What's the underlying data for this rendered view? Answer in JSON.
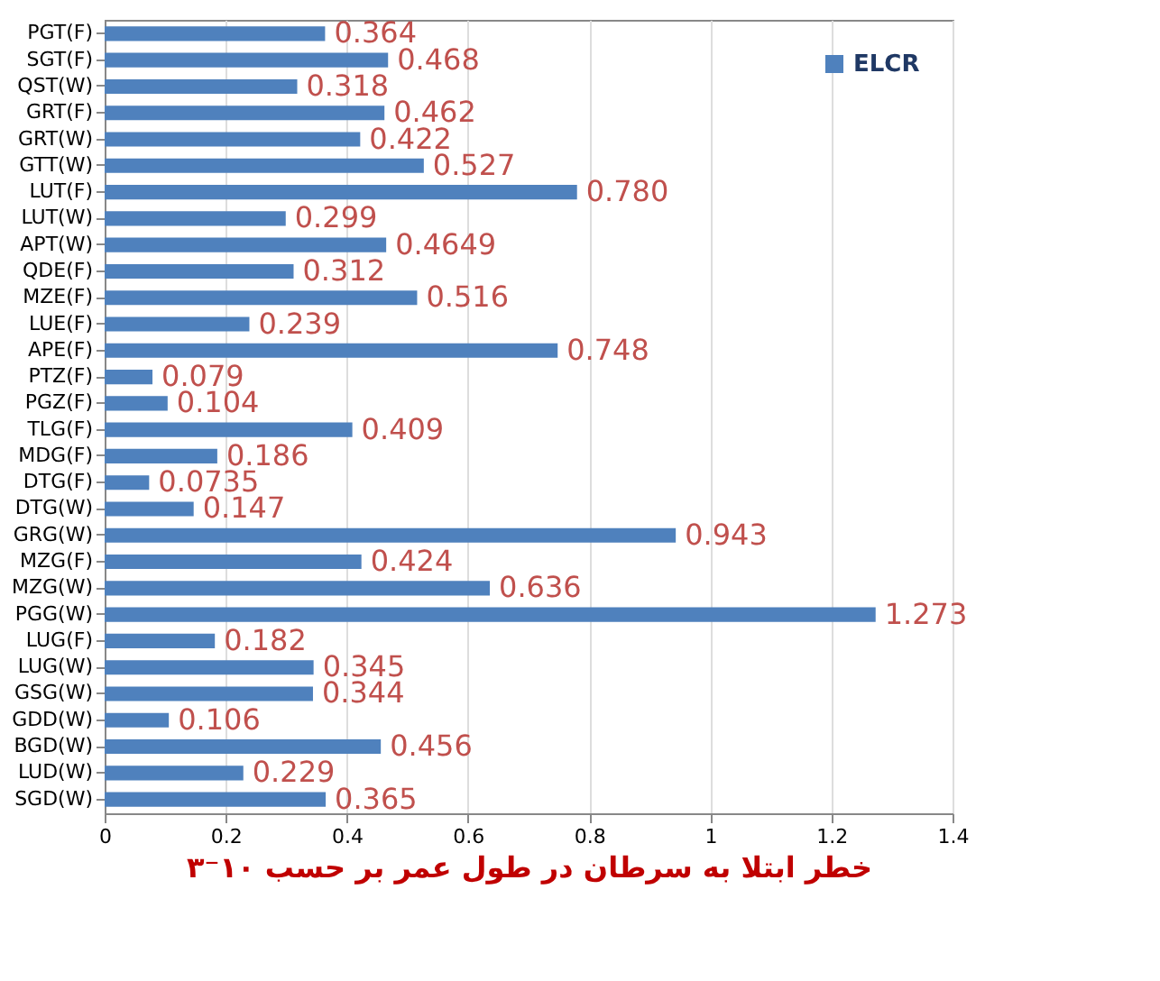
{
  "chart_data": {
    "type": "bar",
    "orientation": "horizontal",
    "xlabel": "خطر ابتلا به سرطان در طول عمر بر حسب ۱۰⁻۳",
    "categories": [
      "PGT(F)",
      "SGT(F)",
      "QST(W)",
      "GRT(F)",
      "GRT(W)",
      "GTT(W)",
      "LUT(F)",
      "LUT(W)",
      "APT(W)",
      "QDE(F)",
      "MZE(F)",
      "LUE(F)",
      "APE(F)",
      "PTZ(F)",
      "PGZ(F)",
      "TLG(F)",
      "MDG(F)",
      "DTG(F)",
      "DTG(W)",
      "GRG(W)",
      "MZG(F)",
      "MZG(W)",
      "PGG(W)",
      "LUG(F)",
      "LUG(W)",
      "GSG(W)",
      "GDD(W)",
      "BGD(W)",
      "LUD(W)",
      "SGD(W)"
    ],
    "series": [
      {
        "name": "ELCR",
        "color": "#4f81bd",
        "values": [
          0.364,
          0.468,
          0.318,
          0.462,
          0.422,
          0.527,
          0.78,
          0.299,
          0.4649,
          0.312,
          0.516,
          0.239,
          0.748,
          0.079,
          0.104,
          0.409,
          0.186,
          0.0735,
          0.147,
          0.943,
          0.424,
          0.636,
          1.273,
          0.182,
          0.345,
          0.344,
          0.106,
          0.456,
          0.229,
          0.365
        ],
        "value_labels": [
          "0.364",
          "0.468",
          "0.318",
          "0.462",
          "0.422",
          "0.527",
          "0.780",
          "0.299",
          "0.4649",
          "0.312",
          "0.516",
          "0.239",
          "0.748",
          "0.079",
          "0.104",
          "0.409",
          "0.186",
          "0.0735",
          "0.147",
          "0.943",
          "0.424",
          "0.636",
          "1.273",
          "0.182",
          "0.345",
          "0.344",
          "0.106",
          "0.456",
          "0.229",
          "0.365"
        ]
      }
    ],
    "xlim": [
      0,
      1.4
    ],
    "xticks": [
      0,
      0.2,
      0.4,
      0.6,
      0.8,
      1,
      1.2,
      1.4
    ],
    "grid": "x",
    "legend": "top right"
  }
}
